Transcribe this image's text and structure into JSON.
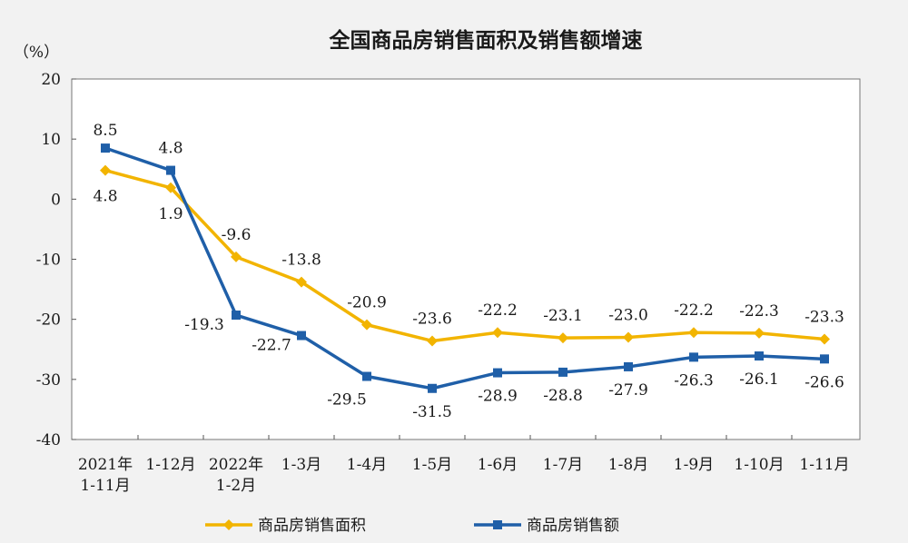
{
  "chart_data": {
    "type": "line",
    "title": "全国商品房销售面积及销售额增速",
    "ylabel": "（%）",
    "ylim": [
      -40,
      20
    ],
    "yticks": [
      20,
      10,
      0,
      -10,
      -20,
      -30,
      -40
    ],
    "grid": false,
    "legend_position": "bottom",
    "categories": [
      [
        "2021年",
        "1-11月"
      ],
      [
        "1-12月"
      ],
      [
        "2022年",
        "1-2月"
      ],
      [
        "1-3月"
      ],
      [
        "1-4月"
      ],
      [
        "1-5月"
      ],
      [
        "1-6月"
      ],
      [
        "1-7月"
      ],
      [
        "1-8月"
      ],
      [
        "1-9月"
      ],
      [
        "1-10月"
      ],
      [
        "1-11月"
      ]
    ],
    "series": [
      {
        "name": "商品房销售面积",
        "color": "#f2b400",
        "marker": "diamond",
        "values": [
          4.8,
          1.9,
          -9.6,
          -13.8,
          -20.9,
          -23.6,
          -22.2,
          -23.1,
          -23.0,
          -22.2,
          -22.3,
          -23.3
        ],
        "labels": [
          "4.8",
          "1.9",
          "-9.6",
          "-13.8",
          "-20.9",
          "-23.6",
          "-22.2",
          "-23.1",
          "-23.0",
          "-22.2",
          "-22.3",
          "-23.3"
        ]
      },
      {
        "name": "商品房销售额",
        "color": "#1f5fa8",
        "marker": "square",
        "values": [
          8.5,
          4.8,
          -19.3,
          -22.7,
          -29.5,
          -31.5,
          -28.9,
          -28.8,
          -27.9,
          -26.3,
          -26.1,
          -26.6
        ],
        "labels": [
          "8.5",
          "4.8",
          "-19.3",
          "-22.7",
          "-29.5",
          "-31.5",
          "-28.9",
          "-28.8",
          "-27.9",
          "-26.3",
          "-26.1",
          "-26.6"
        ]
      }
    ]
  }
}
